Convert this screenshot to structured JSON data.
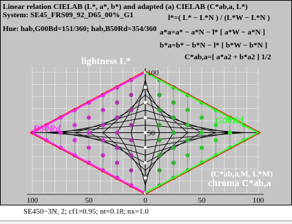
{
  "header": {
    "line1": "Linear relation CIELAB (L*, a*, b*) and adapted (a) CIELAB (C*ab,a, L*)",
    "line2": "System: SE45_FRS09_92_D65_00%_G1",
    "line3": "Hue: hab,G00Bd=151/360; hab,B50Rd=354/360"
  },
  "formulas": [
    "l*=( L* − L*N ) / (L*W − L*N )",
    "a*a=a* − a*N − l* [ a*W − a*N ]",
    "b*a=b* − b*N − l* [ b*W − b*N ]",
    "C*ab,a=[ a*a2 + b*a2 ] 1/2"
  ],
  "footer": "SE450−3N, 2; cf1=0.95; nt=0.18; nx=1.0",
  "chart_data": {
    "type": "scatter",
    "ylabel": "lightness  L*",
    "xlabel": "chroma  C*ab,a",
    "axis_note": "(C*ab,a,M, L*M)",
    "left_label": "B50Rd",
    "right_label": "G00Bd",
    "x_ticks": [
      100,
      50,
      0,
      50,
      100
    ],
    "y_ticks": [
      50,
      100
    ],
    "xlim": [
      -100,
      100
    ],
    "ylim": [
      0,
      100
    ],
    "grid": true,
    "left_hue_max": {
      "c": 100,
      "l": 50
    },
    "right_hue_max": {
      "c": 100,
      "l": 50
    },
    "steps": 8,
    "colors": {
      "background": "#c4c4c4",
      "left_hue": "#ff2cff",
      "right_hue": "#2cff2c",
      "border_red": "#ff0000",
      "grid": "#ffffff",
      "axis": "#000000"
    }
  }
}
